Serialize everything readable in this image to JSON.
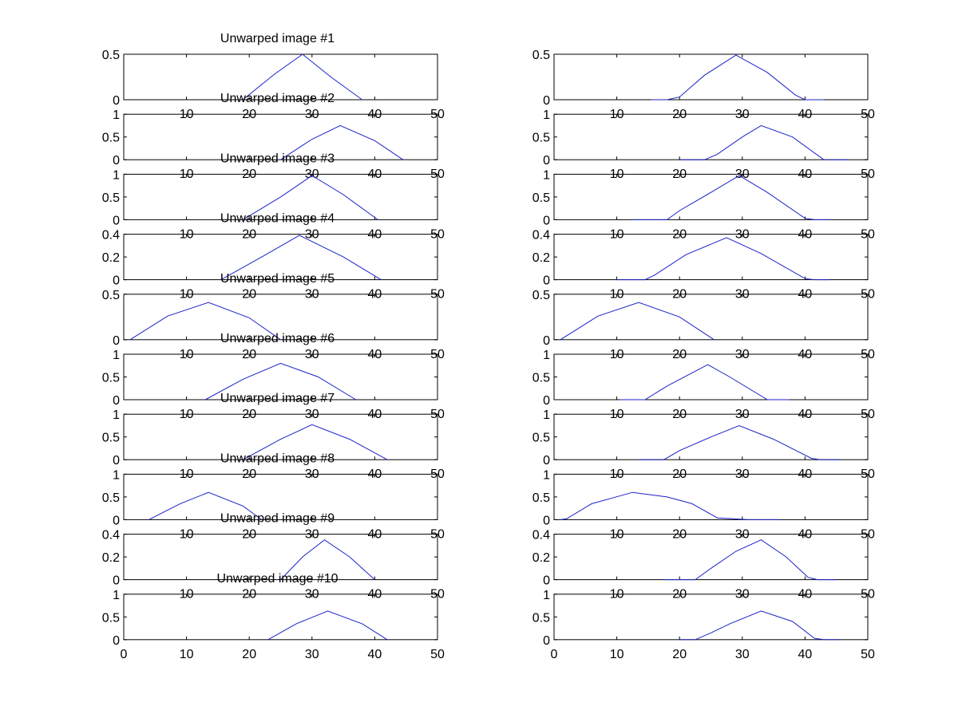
{
  "figure": {
    "background": "#ffffff",
    "line_color": "#1a23c8",
    "axis_color": "#000000"
  },
  "chart_data": [
    {
      "type": "line",
      "title": "Unwarped image #1",
      "xlim": [
        0,
        50
      ],
      "ylim": [
        0,
        0.5
      ],
      "yticks": [
        "0",
        "0.5"
      ],
      "xticks": [
        "10",
        "20",
        "30",
        "40",
        "50"
      ],
      "series": [
        {
          "x": [
            19,
            24,
            28.5,
            33,
            38
          ],
          "y": [
            0,
            0.28,
            0.5,
            0.25,
            0
          ]
        }
      ]
    },
    {
      "type": "line",
      "title": "",
      "xlim": [
        0,
        50
      ],
      "ylim": [
        0,
        0.5
      ],
      "yticks": [
        "0",
        "0.5"
      ],
      "xticks": [
        "10",
        "20",
        "30",
        "40",
        "50"
      ],
      "series": [
        {
          "x": [
            15.5,
            18,
            20,
            24,
            29,
            34,
            38.5,
            40,
            43
          ],
          "y": [
            0,
            0,
            0.03,
            0.27,
            0.49,
            0.3,
            0.05,
            0,
            0
          ]
        }
      ]
    },
    {
      "type": "line",
      "title": "Unwarped image #2",
      "xlim": [
        0,
        50
      ],
      "ylim": [
        0,
        1
      ],
      "yticks": [
        "0",
        "0.5",
        "1"
      ],
      "xticks": [
        "10",
        "20",
        "30",
        "40",
        "50"
      ],
      "series": [
        {
          "x": [
            25,
            30,
            34.5,
            40,
            44.5
          ],
          "y": [
            0,
            0.45,
            0.75,
            0.42,
            0
          ]
        }
      ]
    },
    {
      "type": "line",
      "title": "",
      "xlim": [
        0,
        50
      ],
      "ylim": [
        0,
        1
      ],
      "yticks": [
        "0",
        "0.5",
        "1"
      ],
      "xticks": [
        "10",
        "20",
        "30",
        "40",
        "50"
      ],
      "series": [
        {
          "x": [
            20,
            24,
            26,
            30,
            33,
            38,
            43,
            47
          ],
          "y": [
            0,
            0,
            0.12,
            0.5,
            0.75,
            0.5,
            0,
            0
          ]
        }
      ]
    },
    {
      "type": "line",
      "title": "Unwarped image #3",
      "xlim": [
        0,
        50
      ],
      "ylim": [
        0,
        1
      ],
      "yticks": [
        "0",
        "0.5",
        "1"
      ],
      "xticks": [
        "10",
        "20",
        "30",
        "40",
        "50"
      ],
      "series": [
        {
          "x": [
            19,
            25,
            30,
            35,
            40.5
          ],
          "y": [
            0,
            0.5,
            0.97,
            0.55,
            0
          ]
        }
      ]
    },
    {
      "type": "line",
      "title": "",
      "xlim": [
        0,
        50
      ],
      "ylim": [
        0,
        1
      ],
      "yticks": [
        "0",
        "0.5",
        "1"
      ],
      "xticks": [
        "10",
        "20",
        "30",
        "40",
        "50"
      ],
      "series": [
        {
          "x": [
            12.5,
            18,
            20,
            25,
            29.5,
            34,
            40,
            41.5,
            44
          ],
          "y": [
            0,
            0,
            0.2,
            0.6,
            0.97,
            0.6,
            0.03,
            0,
            0
          ]
        }
      ]
    },
    {
      "type": "line",
      "title": "Unwarped image #4",
      "xlim": [
        0,
        50
      ],
      "ylim": [
        0,
        0.4
      ],
      "yticks": [
        "0",
        "0.2",
        "0.4"
      ],
      "xticks": [
        "10",
        "20",
        "30",
        "40",
        "50"
      ],
      "series": [
        {
          "x": [
            15.5,
            22,
            28,
            35,
            41
          ],
          "y": [
            0,
            0.2,
            0.39,
            0.2,
            0
          ]
        }
      ]
    },
    {
      "type": "line",
      "title": "",
      "xlim": [
        0,
        50
      ],
      "ylim": [
        0,
        0.4
      ],
      "yticks": [
        "0",
        "0.2",
        "0.4"
      ],
      "xticks": [
        "10",
        "20",
        "30",
        "40",
        "50"
      ],
      "series": [
        {
          "x": [
            10,
            14.5,
            16,
            21,
            27.5,
            33,
            40,
            41.5,
            44
          ],
          "y": [
            0,
            0,
            0.04,
            0.22,
            0.37,
            0.23,
            0.01,
            0,
            0
          ]
        }
      ]
    },
    {
      "type": "line",
      "title": "Unwarped image #5",
      "xlim": [
        0,
        50
      ],
      "ylim": [
        0,
        0.5
      ],
      "yticks": [
        "0",
        "0.5"
      ],
      "xticks": [
        "10",
        "20",
        "30",
        "40",
        "50"
      ],
      "series": [
        {
          "x": [
            1,
            7,
            13.5,
            20,
            25
          ],
          "y": [
            0,
            0.26,
            0.41,
            0.24,
            0
          ]
        }
      ]
    },
    {
      "type": "line",
      "title": "",
      "xlim": [
        0,
        50
      ],
      "ylim": [
        0,
        0.5
      ],
      "yticks": [
        "0",
        "0.5"
      ],
      "xticks": [
        "10",
        "20",
        "30",
        "40",
        "50"
      ],
      "series": [
        {
          "x": [
            1,
            7,
            13.5,
            20,
            25.5
          ],
          "y": [
            0,
            0.26,
            0.41,
            0.25,
            0
          ]
        }
      ]
    },
    {
      "type": "line",
      "title": "Unwarped image #6",
      "xlim": [
        0,
        50
      ],
      "ylim": [
        0,
        1
      ],
      "yticks": [
        "0",
        "0.5",
        "1"
      ],
      "xticks": [
        "10",
        "20",
        "30",
        "40",
        "50"
      ],
      "series": [
        {
          "x": [
            13,
            19,
            25,
            31,
            37
          ],
          "y": [
            0,
            0.45,
            0.8,
            0.5,
            0
          ]
        }
      ]
    },
    {
      "type": "line",
      "title": "",
      "xlim": [
        0,
        50
      ],
      "ylim": [
        0,
        1
      ],
      "yticks": [
        "0",
        "0.5",
        "1"
      ],
      "xticks": [
        "10",
        "20",
        "30",
        "40",
        "50"
      ],
      "series": [
        {
          "x": [
            10.5,
            14.5,
            18,
            24.5,
            28,
            34,
            37.5
          ],
          "y": [
            0,
            0,
            0.3,
            0.77,
            0.5,
            0,
            0
          ]
        }
      ]
    },
    {
      "type": "line",
      "title": "Unwarped image #7",
      "xlim": [
        0,
        50
      ],
      "ylim": [
        0,
        1
      ],
      "yticks": [
        "0",
        "0.5",
        "1"
      ],
      "xticks": [
        "10",
        "20",
        "30",
        "40",
        "50"
      ],
      "series": [
        {
          "x": [
            19,
            25,
            30,
            36,
            42
          ],
          "y": [
            0,
            0.45,
            0.77,
            0.45,
            0
          ]
        }
      ]
    },
    {
      "type": "line",
      "title": "",
      "xlim": [
        0,
        50
      ],
      "ylim": [
        0,
        1
      ],
      "yticks": [
        "0",
        "0.5",
        "1"
      ],
      "xticks": [
        "10",
        "20",
        "30",
        "40",
        "50"
      ],
      "series": [
        {
          "x": [
            13.5,
            17.5,
            20,
            25,
            29.5,
            35,
            41,
            42.5,
            45.5
          ],
          "y": [
            0,
            0,
            0.2,
            0.5,
            0.75,
            0.45,
            0.03,
            0,
            0
          ]
        }
      ]
    },
    {
      "type": "line",
      "title": "Unwarped image #8",
      "xlim": [
        0,
        50
      ],
      "ylim": [
        0,
        1
      ],
      "yticks": [
        "0",
        "0.5",
        "1"
      ],
      "xticks": [
        "10",
        "20",
        "30",
        "40",
        "50"
      ],
      "series": [
        {
          "x": [
            4,
            9,
            13.5,
            19,
            22
          ],
          "y": [
            0,
            0.35,
            0.6,
            0.3,
            0
          ]
        }
      ]
    },
    {
      "type": "line",
      "title": "",
      "xlim": [
        0,
        50
      ],
      "ylim": [
        0,
        1
      ],
      "yticks": [
        "0",
        "0.5",
        "1"
      ],
      "xticks": [
        "10",
        "20",
        "30",
        "40",
        "50"
      ],
      "series": [
        {
          "x": [
            1,
            2,
            6,
            12.5,
            18,
            22,
            26,
            31,
            33,
            36
          ],
          "y": [
            0,
            0.02,
            0.35,
            0.6,
            0.5,
            0.35,
            0.04,
            0,
            0,
            0
          ]
        }
      ]
    },
    {
      "type": "line",
      "title": "Unwarped image #9",
      "xlim": [
        0,
        50
      ],
      "ylim": [
        0,
        0.4
      ],
      "yticks": [
        "0",
        "0.2",
        "0.4"
      ],
      "xticks": [
        "10",
        "20",
        "30",
        "40",
        "50"
      ],
      "series": [
        {
          "x": [
            25,
            28.5,
            32,
            36,
            40
          ],
          "y": [
            0,
            0.2,
            0.35,
            0.2,
            0
          ]
        }
      ]
    },
    {
      "type": "line",
      "title": "",
      "xlim": [
        0,
        50
      ],
      "ylim": [
        0,
        0.4
      ],
      "yticks": [
        "0",
        "0.2",
        "0.4"
      ],
      "xticks": [
        "10",
        "20",
        "30",
        "40",
        "50"
      ],
      "series": [
        {
          "x": [
            17.5,
            22.5,
            25,
            29,
            33,
            37,
            40.5,
            42,
            45
          ],
          "y": [
            0,
            0,
            0.1,
            0.25,
            0.35,
            0.2,
            0.02,
            0,
            0
          ]
        }
      ]
    },
    {
      "type": "line",
      "title": "Unwarped image #10",
      "xlim": [
        0,
        50
      ],
      "ylim": [
        0,
        1
      ],
      "yticks": [
        "0",
        "0.5",
        "1"
      ],
      "xticks": [
        "0",
        "10",
        "20",
        "30",
        "40",
        "50"
      ],
      "series": [
        {
          "x": [
            23,
            27.5,
            32.5,
            38,
            42
          ],
          "y": [
            0,
            0.35,
            0.63,
            0.35,
            0
          ]
        }
      ]
    },
    {
      "type": "line",
      "title": "",
      "xlim": [
        0,
        50
      ],
      "ylim": [
        0,
        1
      ],
      "yticks": [
        "0",
        "0.5",
        "1"
      ],
      "xticks": [
        "0",
        "10",
        "20",
        "30",
        "40",
        "50"
      ],
      "series": [
        {
          "x": [
            20,
            22.5,
            25,
            28,
            33,
            38,
            41.5,
            43,
            45.5
          ],
          "y": [
            0,
            0,
            0.15,
            0.35,
            0.63,
            0.4,
            0.03,
            0,
            0
          ]
        }
      ]
    }
  ]
}
